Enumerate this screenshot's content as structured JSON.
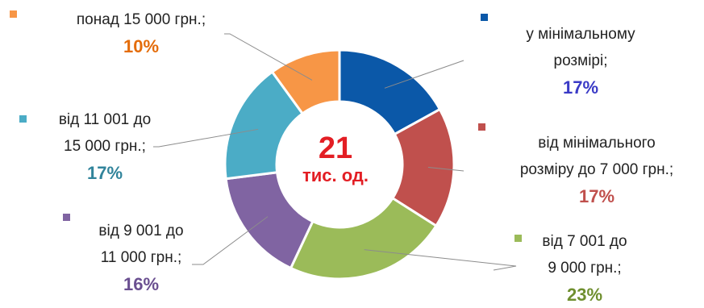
{
  "chart_data": {
    "type": "pie",
    "center_value": "21",
    "center_unit": "тис. од.",
    "slices": [
      {
        "label_lines": [
          "у мінімальному",
          "розмірі;"
        ],
        "value": 17,
        "value_text": "17%",
        "color": "#0b58a8",
        "label_color": "#3a3ac6"
      },
      {
        "label_lines": [
          "від мінімального",
          "розміру до 7 000 грн.;"
        ],
        "value": 17,
        "value_text": "17%",
        "color": "#c0504d",
        "label_color": "#c0504d"
      },
      {
        "label_lines": [
          "від 7 001 до",
          "9 000 грн.;"
        ],
        "value": 23,
        "value_text": "23%",
        "color": "#9bbb59",
        "label_color": "#6f8f2f"
      },
      {
        "label_lines": [
          "від 9 001 до",
          "11 000 грн.;"
        ],
        "value": 16,
        "value_text": "16%",
        "color": "#8064a2",
        "label_color": "#6a4f90"
      },
      {
        "label_lines": [
          "від 11 001 до",
          "15 000 грн.;"
        ],
        "value": 17,
        "value_text": "17%",
        "color": "#4bacc6",
        "label_color": "#31849b"
      },
      {
        "label_lines": [
          "понад 15 000 грн.;"
        ],
        "value": 10,
        "value_text": "10%",
        "color": "#f79646",
        "label_color": "#e46c0a"
      }
    ]
  }
}
